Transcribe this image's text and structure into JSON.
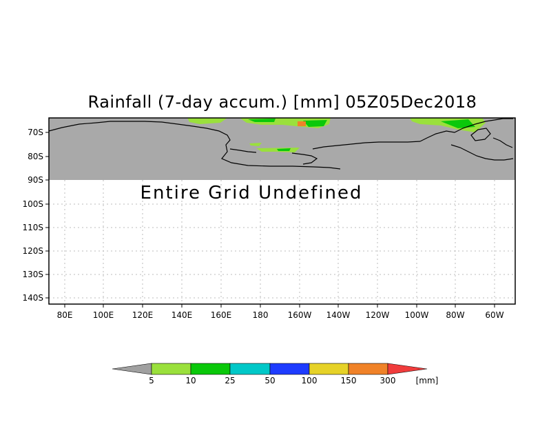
{
  "title": "Rainfall (7-day accum.) [mm] 05Z05Dec2018",
  "undefined_message": "Entire Grid Undefined",
  "y_axis_labels": [
    "70S",
    "80S",
    "90S",
    "100S",
    "110S",
    "120S",
    "130S",
    "140S"
  ],
  "x_axis_labels": [
    "80E",
    "100E",
    "120E",
    "140E",
    "160E",
    "180",
    "160W",
    "140W",
    "120W",
    "100W",
    "80W",
    "60W"
  ],
  "legend": {
    "labels": [
      "5",
      "10",
      "25",
      "50",
      "100",
      "150",
      "300"
    ],
    "unit": "[mm]",
    "colors": [
      "#9ae03c",
      "#0ac80a",
      "#00c8c8",
      "#1e3cff",
      "#e6d228",
      "#f08228",
      "#f03c3c"
    ],
    "under_color": "#a0a0a0"
  },
  "colors": {
    "land_mask": "#a9a9a9",
    "coastline": "#000000",
    "grid": "#bbbbbb"
  }
}
